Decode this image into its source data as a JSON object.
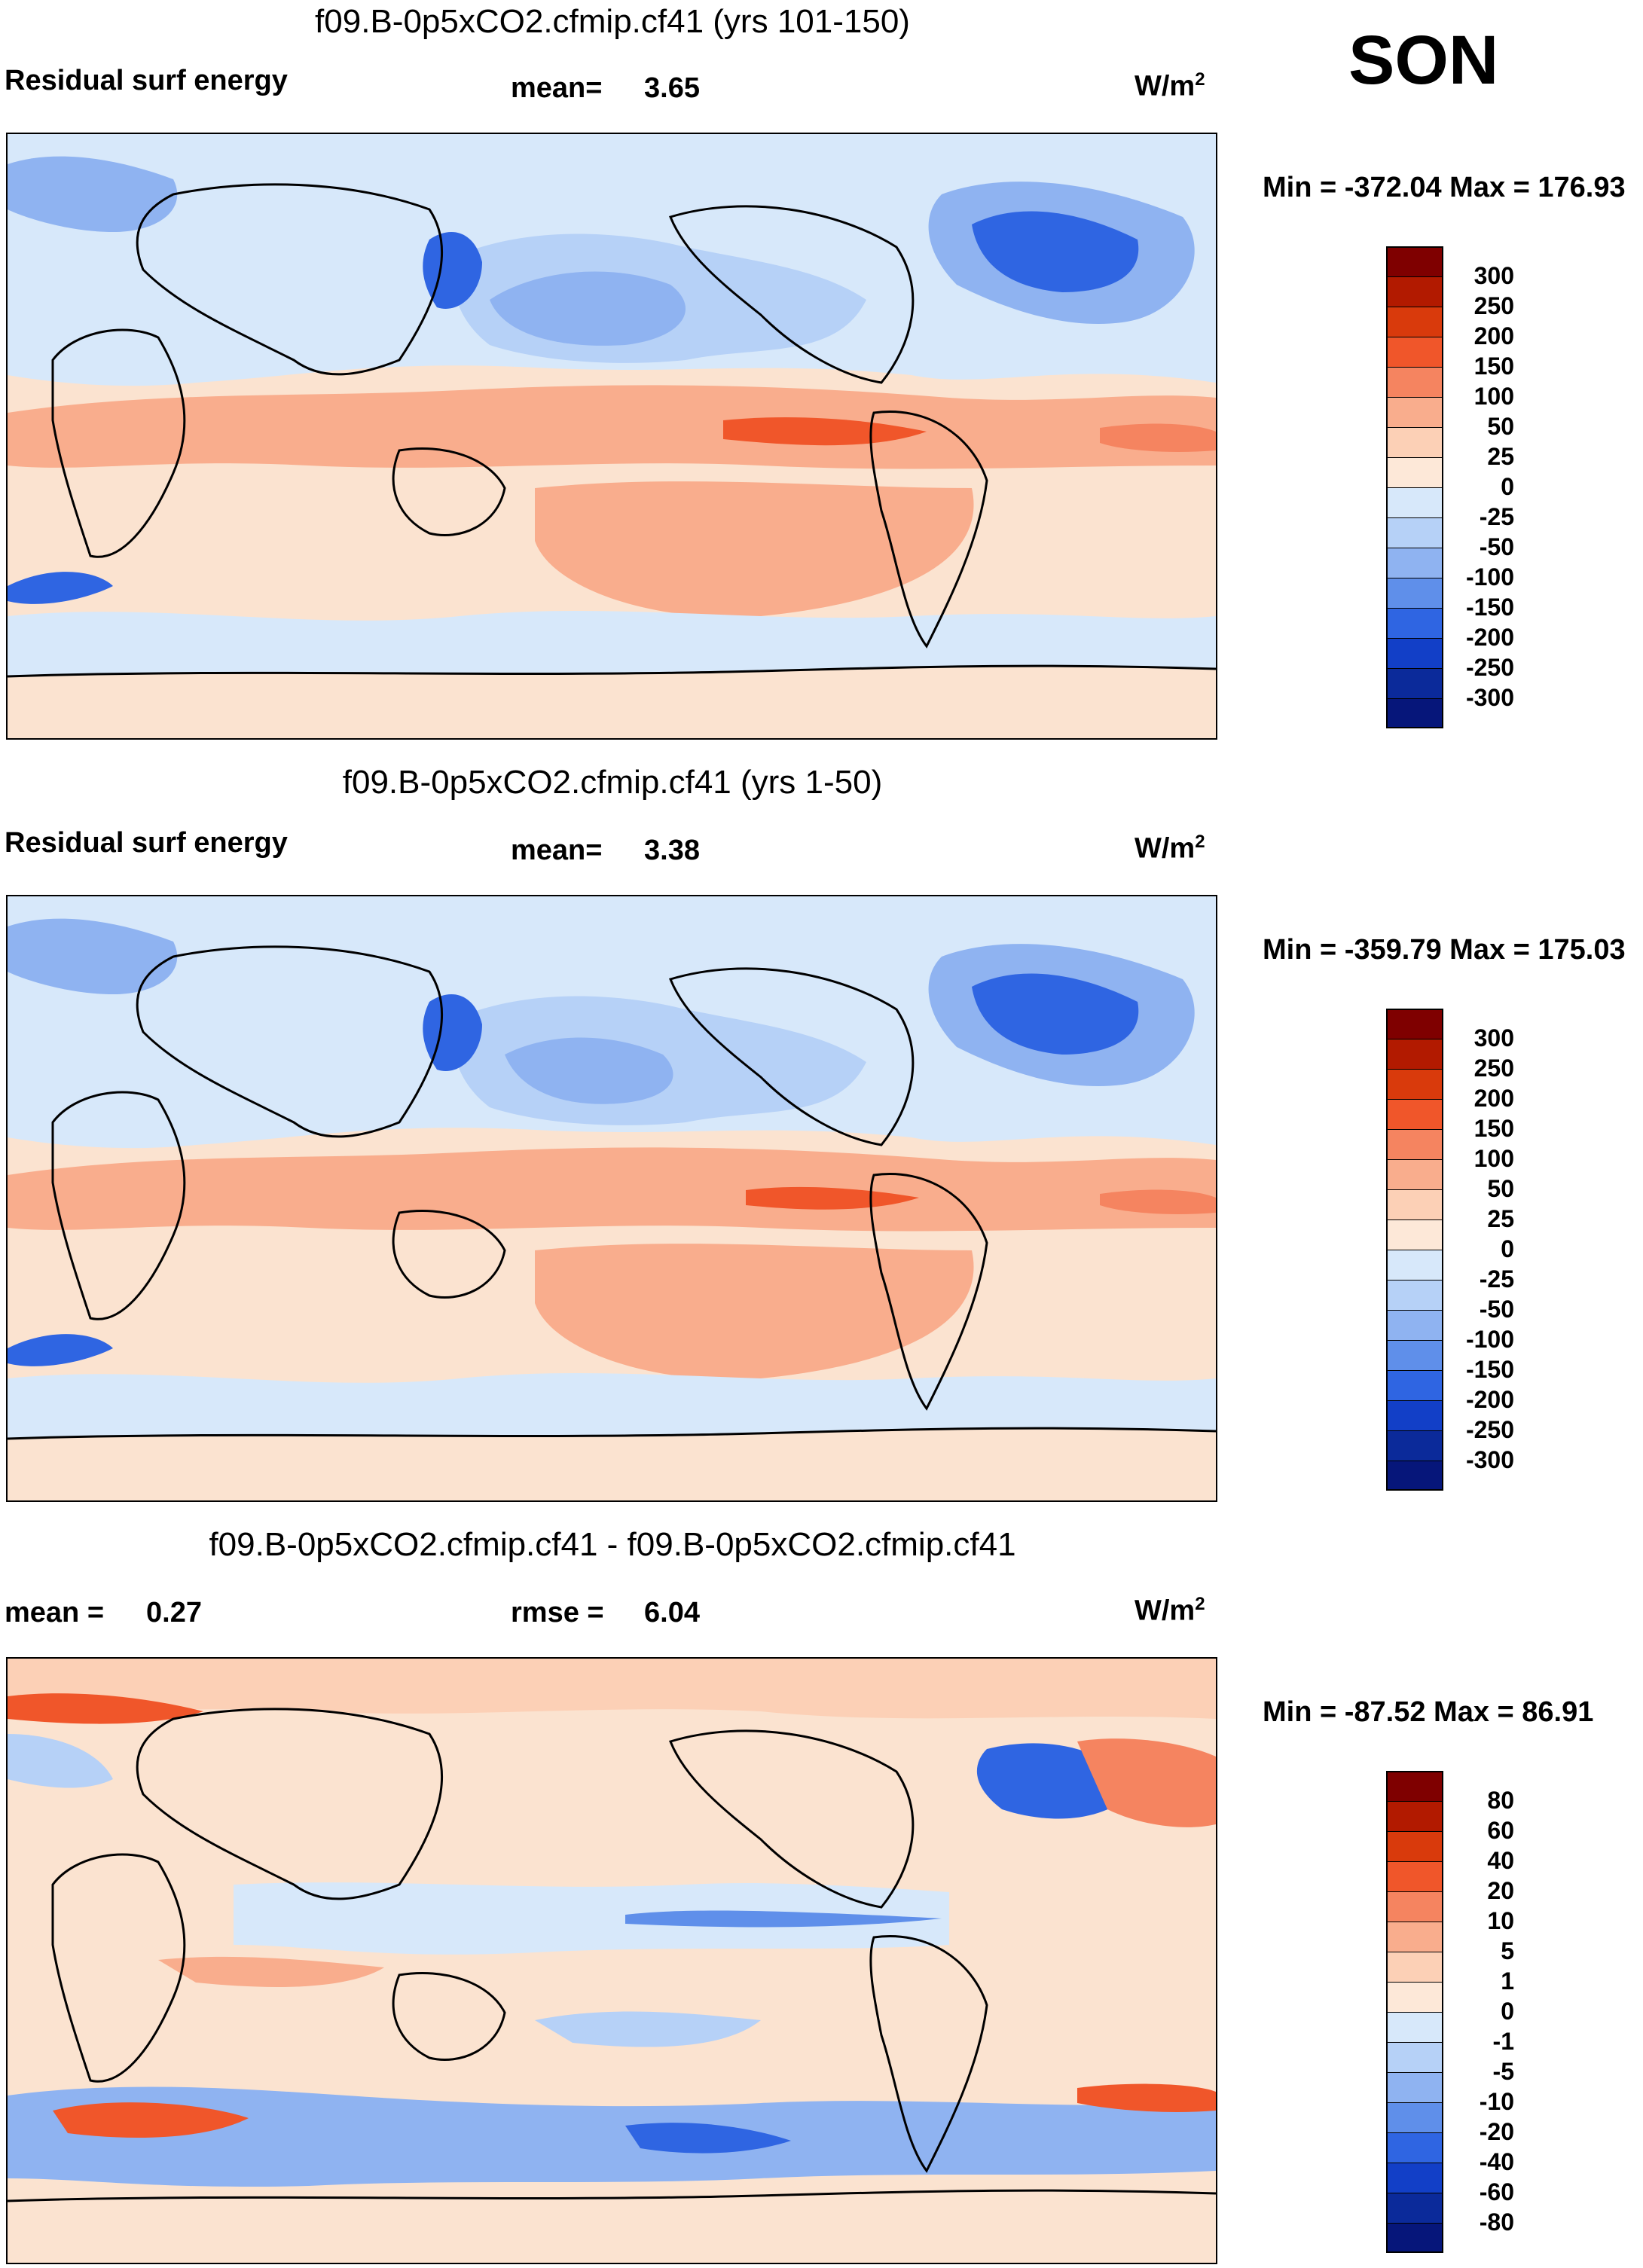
{
  "season": "SON",
  "panels": [
    {
      "title": "f09.B-0p5xCO2.cfmip.cf41 (yrs 101-150)",
      "left_label": "Residual surf energy",
      "mid_label": "mean=",
      "mid_value": "3.65",
      "right_label": "",
      "right_value": "",
      "units": "W/m",
      "units_sup": "2",
      "min_max": "Min = -372.04 Max = 176.93",
      "colorbar": {
        "labels": [
          "300",
          "250",
          "200",
          "150",
          "100",
          "50",
          "25",
          "0",
          "-25",
          "-50",
          "-100",
          "-150",
          "-200",
          "-250",
          "-300"
        ],
        "colors": [
          "#7f0000",
          "#b21a00",
          "#d93a0c",
          "#f0562a",
          "#f58460",
          "#f9ad8d",
          "#fcd0b6",
          "#fde8d8",
          "#d7e8fa",
          "#b6d1f7",
          "#8fb3f1",
          "#5f8fea",
          "#2f65e2",
          "#123fc7",
          "#0b2a9a",
          "#06167a"
        ]
      }
    },
    {
      "title": "f09.B-0p5xCO2.cfmip.cf41 (yrs 1-50)",
      "left_label": "Residual surf energy",
      "mid_label": "mean=",
      "mid_value": "3.38",
      "right_label": "",
      "right_value": "",
      "units": "W/m",
      "units_sup": "2",
      "min_max": "Min = -359.79 Max = 175.03",
      "colorbar": {
        "labels": [
          "300",
          "250",
          "200",
          "150",
          "100",
          "50",
          "25",
          "0",
          "-25",
          "-50",
          "-100",
          "-150",
          "-200",
          "-250",
          "-300"
        ],
        "colors": [
          "#7f0000",
          "#b21a00",
          "#d93a0c",
          "#f0562a",
          "#f58460",
          "#f9ad8d",
          "#fcd0b6",
          "#fde8d8",
          "#d7e8fa",
          "#b6d1f7",
          "#8fb3f1",
          "#5f8fea",
          "#2f65e2",
          "#123fc7",
          "#0b2a9a",
          "#06167a"
        ]
      }
    },
    {
      "title": "f09.B-0p5xCO2.cfmip.cf41 - f09.B-0p5xCO2.cfmip.cf41",
      "left_label": "mean =",
      "left_value": "0.27",
      "mid_label": "rmse =",
      "mid_value": "6.04",
      "units": "W/m",
      "units_sup": "2",
      "min_max": "Min = -87.52 Max =  86.91",
      "colorbar": {
        "labels": [
          "80",
          "60",
          "40",
          "20",
          "10",
          "5",
          "1",
          "0",
          "-1",
          "-5",
          "-10",
          "-20",
          "-40",
          "-60",
          "-80"
        ],
        "colors": [
          "#7f0000",
          "#b21a00",
          "#d93a0c",
          "#f0562a",
          "#f58460",
          "#f9ad8d",
          "#fcd0b6",
          "#fde8d8",
          "#d7e8fa",
          "#b6d1f7",
          "#8fb3f1",
          "#5f8fea",
          "#2f65e2",
          "#123fc7",
          "#0b2a9a",
          "#06167a"
        ]
      }
    }
  ]
}
